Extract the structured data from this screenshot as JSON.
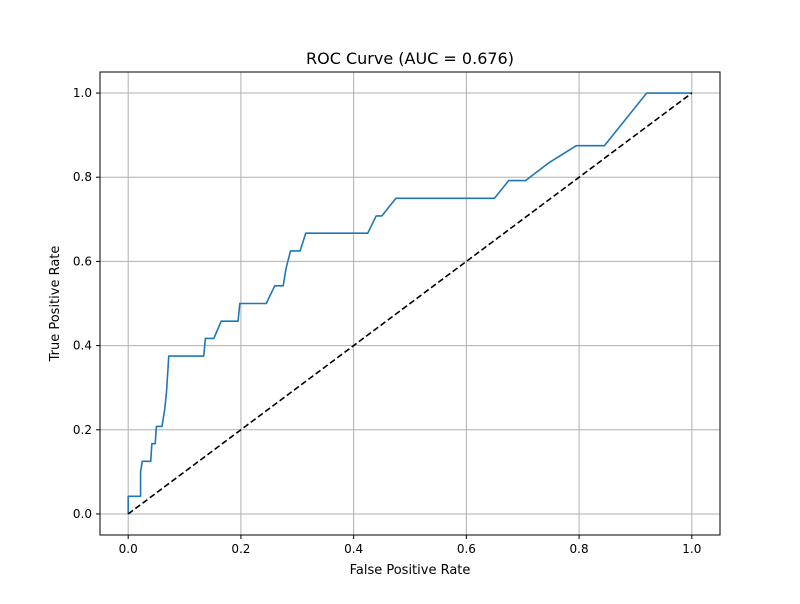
{
  "chart_data": {
    "type": "line",
    "title": "ROC Curve (AUC = 0.676)",
    "xlabel": "False Positive Rate",
    "ylabel": "True Positive Rate",
    "xlim": [
      -0.05,
      1.05
    ],
    "ylim": [
      -0.05,
      1.05
    ],
    "xticks": [
      0.0,
      0.2,
      0.4,
      0.6,
      0.8,
      1.0
    ],
    "xtick_labels": [
      "0.0",
      "0.2",
      "0.4",
      "0.6",
      "0.8",
      "1.0"
    ],
    "yticks": [
      0.0,
      0.2,
      0.4,
      0.6,
      0.8,
      1.0
    ],
    "ytick_labels": [
      "0.0",
      "0.2",
      "0.4",
      "0.6",
      "0.8",
      "1.0"
    ],
    "grid": true,
    "series": [
      {
        "color": "#1f77b4",
        "style": "solid",
        "x": [
          0.0,
          0.0,
          0.022,
          0.022,
          0.025,
          0.027,
          0.04,
          0.042,
          0.048,
          0.05,
          0.06,
          0.065,
          0.068,
          0.072,
          0.075,
          0.134,
          0.137,
          0.152,
          0.165,
          0.195,
          0.198,
          0.245,
          0.26,
          0.275,
          0.28,
          0.288,
          0.305,
          0.315,
          0.425,
          0.44,
          0.45,
          0.475,
          0.65,
          0.675,
          0.705,
          0.745,
          0.795,
          0.845,
          0.92,
          1.0
        ],
        "y": [
          0.0,
          0.042,
          0.042,
          0.1,
          0.125,
          0.125,
          0.125,
          0.167,
          0.167,
          0.208,
          0.208,
          0.25,
          0.29,
          0.375,
          0.375,
          0.375,
          0.417,
          0.417,
          0.458,
          0.458,
          0.5,
          0.5,
          0.542,
          0.542,
          0.583,
          0.625,
          0.625,
          0.667,
          0.667,
          0.708,
          0.708,
          0.75,
          0.75,
          0.792,
          0.792,
          0.833,
          0.875,
          0.875,
          1.0,
          1.0
        ]
      },
      {
        "color": "#000000",
        "style": "dashed",
        "x": [
          0.0,
          1.0
        ],
        "y": [
          0.0,
          1.0
        ]
      }
    ]
  }
}
